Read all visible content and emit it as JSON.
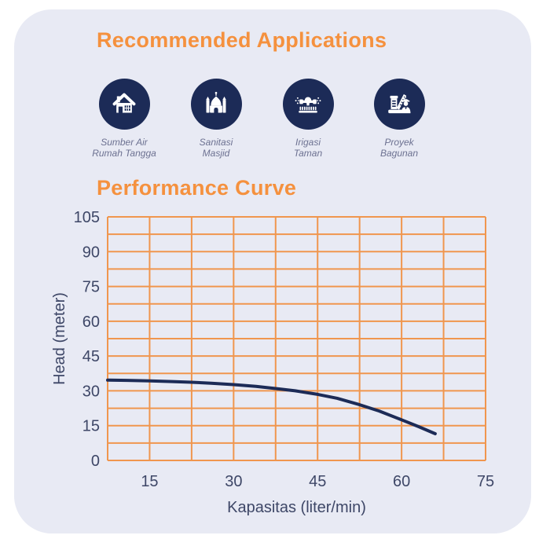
{
  "applications": {
    "title": "Recommended Applications",
    "items": [
      {
        "icon": "house-icon",
        "line1": "Sumber Air",
        "line2": "Rumah Tangga"
      },
      {
        "icon": "mosque-icon",
        "line1": "Sanitasi",
        "line2": "Masjid"
      },
      {
        "icon": "sprinkler-icon",
        "line1": "Irigasi",
        "line2": "Taman"
      },
      {
        "icon": "crane-icon",
        "line1": "Proyek",
        "line2": "Bagunan"
      }
    ]
  },
  "performance": {
    "title": "Performance Curve"
  },
  "chart_data": {
    "type": "line",
    "title": "Performance Curve",
    "xlabel": "Kapasitas (liter/min)",
    "ylabel": "Head (meter)",
    "xlim": [
      7.5,
      75
    ],
    "ylim": [
      0,
      105
    ],
    "x_tick_labels": [
      15,
      30,
      45,
      60,
      75
    ],
    "y_tick_labels": [
      0,
      15,
      30,
      45,
      60,
      75,
      90,
      105
    ],
    "grid": "on",
    "grid_step_x": 7.5,
    "grid_step_y": 7.5,
    "legend": "none",
    "series": [
      {
        "name": "pump-head-curve",
        "color": "#1C2B57",
        "points": [
          [
            7.5,
            34.6
          ],
          [
            11,
            34.5
          ],
          [
            15,
            34.3
          ],
          [
            19,
            34.0
          ],
          [
            22.5,
            33.7
          ],
          [
            26,
            33.3
          ],
          [
            30,
            32.7
          ],
          [
            34,
            31.9
          ],
          [
            37.5,
            31.0
          ],
          [
            41,
            30.0
          ],
          [
            45,
            28.5
          ],
          [
            48.5,
            26.8
          ],
          [
            52.5,
            24.0
          ],
          [
            56,
            21.3
          ],
          [
            60,
            17.5
          ],
          [
            63,
            14.6
          ],
          [
            66,
            11.5
          ]
        ]
      }
    ]
  },
  "colors": {
    "accent_orange": "#F5913E",
    "grid_orange": "#F0964E",
    "navy": "#1C2B57",
    "card_bg": "#E8EAF4",
    "axis_text": "#3E4767",
    "label_gray": "#6C7191",
    "page_bg": "#FFFFFF"
  }
}
